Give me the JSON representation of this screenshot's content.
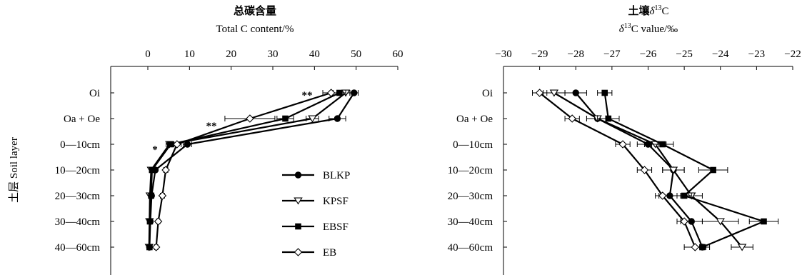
{
  "ylabel": "土层 Soil layer",
  "chart_data": [
    {
      "type": "line",
      "title": "总碳含量",
      "xlabel": "Total C content/%",
      "x_axis_position": "top",
      "xlim": [
        0,
        60
      ],
      "xticks": [
        "0",
        "10",
        "20",
        "30",
        "40",
        "50",
        "60"
      ],
      "categories": [
        "Oi",
        "Oa + Oe",
        "0—10cm",
        "10—20cm",
        "20—30cm",
        "30—40cm",
        "40—60cm"
      ],
      "series": [
        {
          "name": "BLKP",
          "marker": "filled-circle",
          "values": [
            49.5,
            45.5,
            9.5,
            1.8,
            0.9,
            0.6,
            0.4
          ],
          "errors": [
            1.0,
            2.0,
            1.0,
            0.4,
            0.2,
            0.2,
            0.2
          ]
        },
        {
          "name": "KPSF",
          "marker": "open-triangle-down",
          "values": [
            47.5,
            39.5,
            5.2,
            0.8,
            0.5,
            0.4,
            0.3
          ],
          "errors": [
            1.0,
            1.5,
            0.8,
            0.3,
            0.2,
            0.2,
            0.2
          ]
        },
        {
          "name": "EBSF",
          "marker": "filled-square",
          "values": [
            46.0,
            33.0,
            5.5,
            1.0,
            0.8,
            0.5,
            0.4
          ],
          "errors": [
            1.5,
            2.0,
            0.8,
            0.3,
            0.2,
            0.2,
            0.2
          ]
        },
        {
          "name": "EB",
          "marker": "open-diamond",
          "values": [
            44.0,
            24.5,
            7.0,
            4.3,
            3.5,
            2.5,
            2.0
          ],
          "errors": [
            2.0,
            6.0,
            1.0,
            0.5,
            0.5,
            0.4,
            0.4
          ]
        }
      ],
      "annotations": [
        {
          "text": "**",
          "near": "Oi"
        },
        {
          "text": "**",
          "near": "Oa + Oe"
        },
        {
          "text": "*",
          "near": "0—10cm"
        }
      ],
      "legend": {
        "position": "lower-right",
        "entries": [
          "BLKP",
          "KPSF",
          "EBSF",
          "EB"
        ]
      }
    },
    {
      "type": "line",
      "title": "土壤δ13C",
      "title_parts": [
        "土壤",
        "δ",
        "13",
        "C"
      ],
      "xlabel": "δ13C value/‰",
      "xlabel_parts": [
        "δ",
        "13",
        "C value/‰"
      ],
      "x_axis_position": "top",
      "xlim": [
        -30,
        -22
      ],
      "xticks": [
        "−30",
        "−29",
        "−28",
        "−27",
        "−26",
        "−25",
        "−24",
        "−23",
        "−22"
      ],
      "categories": [
        "Oi",
        "Oa + Oe",
        "0—10cm",
        "10—20cm",
        "20—30cm",
        "30—40cm",
        "40—60cm"
      ],
      "series": [
        {
          "name": "BLKP",
          "marker": "filled-circle",
          "values": [
            -28.0,
            -27.4,
            -26.0,
            -25.3,
            -25.4,
            -24.8,
            -24.5
          ],
          "errors": [
            0.3,
            0.3,
            0.3,
            0.3,
            0.3,
            0.3,
            0.2
          ]
        },
        {
          "name": "KPSF",
          "marker": "open-triangle-down",
          "values": [
            -28.6,
            -27.4,
            -25.8,
            -25.3,
            -24.8,
            -24.0,
            -23.4
          ],
          "errors": [
            0.3,
            0.3,
            0.3,
            0.3,
            0.3,
            0.5,
            0.3
          ]
        },
        {
          "name": "EBSF",
          "marker": "filled-square",
          "values": [
            -27.2,
            -27.1,
            -25.6,
            -24.2,
            -25.0,
            -22.8,
            -24.5
          ],
          "errors": [
            0.2,
            0.3,
            0.3,
            0.4,
            0.2,
            0.4,
            0.2
          ]
        },
        {
          "name": "EB",
          "marker": "open-diamond",
          "values": [
            -29.0,
            -28.1,
            -26.7,
            -26.1,
            -25.6,
            -25.0,
            -24.7
          ],
          "errors": [
            0.2,
            0.2,
            0.2,
            0.2,
            0.2,
            0.2,
            0.3
          ]
        }
      ]
    }
  ]
}
